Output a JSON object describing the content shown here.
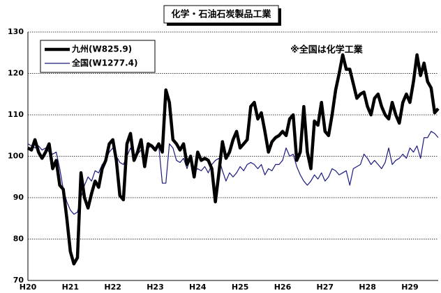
{
  "chart_data": {
    "type": "line",
    "title": "化学・石油石炭製品工業",
    "annotation": "※全国は化学工業",
    "categories": [
      "H20",
      null,
      null,
      null,
      null,
      null,
      null,
      null,
      null,
      null,
      null,
      null,
      "H21",
      null,
      null,
      null,
      null,
      null,
      null,
      null,
      null,
      null,
      null,
      null,
      "H22",
      null,
      null,
      null,
      null,
      null,
      null,
      null,
      null,
      null,
      null,
      null,
      "H23",
      null,
      null,
      null,
      null,
      null,
      null,
      null,
      null,
      null,
      null,
      null,
      "H24",
      null,
      null,
      null,
      null,
      null,
      null,
      null,
      null,
      null,
      null,
      null,
      "H25",
      null,
      null,
      null,
      null,
      null,
      null,
      null,
      null,
      null,
      null,
      null,
      "H26",
      null,
      null,
      null,
      null,
      null,
      null,
      null,
      null,
      null,
      null,
      null,
      "H27",
      null,
      null,
      null,
      null,
      null,
      null,
      null,
      null,
      null,
      null,
      null,
      "H28",
      null,
      null,
      null,
      null,
      null,
      null,
      null,
      null,
      null,
      null,
      null,
      "H29",
      null,
      null,
      null,
      null,
      null,
      null,
      null,
      null
    ],
    "series": [
      {
        "name": "九州(W825.9)",
        "color": "#000000",
        "width": 4.5,
        "values": [
          102,
          101.5,
          104,
          101,
          99.5,
          101,
          103,
          97,
          99,
          93,
          92,
          85,
          77,
          74,
          75.5,
          96,
          90,
          87.5,
          91,
          94,
          92.5,
          97,
          99,
          103,
          104,
          99,
          90.5,
          89.5,
          103,
          105.5,
          99,
          101,
          104,
          97.5,
          103,
          102.5,
          101.5,
          103,
          101,
          116,
          113,
          104,
          103,
          101.5,
          103,
          98,
          100,
          95,
          101,
          99,
          99.5,
          99,
          97,
          89,
          96,
          103.5,
          99.5,
          101,
          104,
          106,
          102,
          103,
          104,
          112,
          113,
          109,
          110.5,
          106,
          101,
          103.5,
          104.5,
          105,
          106,
          105,
          109,
          110,
          99,
          101,
          112,
          101,
          97,
          108.5,
          107.5,
          113,
          106,
          105,
          110,
          116,
          120,
          124.5,
          121,
          121,
          117.5,
          114,
          115,
          115.5,
          112,
          110,
          114,
          115,
          112,
          110,
          109,
          113,
          110,
          108,
          113,
          115,
          113,
          118,
          124.5,
          119.5,
          122.5,
          118,
          116.5,
          110.5,
          111.5
        ]
      },
      {
        "name": "全国(W1277.4)",
        "color": "#1a1a80",
        "width": 1.2,
        "values": [
          103,
          102.5,
          102,
          102.5,
          101.5,
          102,
          101,
          100.5,
          101,
          97,
          92,
          89,
          87,
          86,
          86.5,
          90,
          93,
          95,
          94,
          96.5,
          96,
          98,
          99,
          101,
          102,
          100,
          98.5,
          98,
          100,
          102,
          100,
          100.5,
          101.5,
          99,
          102,
          102.5,
          101.5,
          102.5,
          93.5,
          93.5,
          103,
          102,
          99,
          98.5,
          99.5,
          97,
          100,
          96.5,
          97,
          96.5,
          97.5,
          96,
          98,
          99,
          99.5,
          96.5,
          94,
          96,
          95,
          96,
          97.5,
          96.5,
          98,
          98.5,
          98,
          97,
          98,
          95.5,
          97,
          96.5,
          98,
          98,
          99,
          102,
          100,
          100.5,
          97.5,
          95.5,
          94,
          93,
          94,
          95.5,
          94.5,
          96,
          94,
          95,
          97,
          96.5,
          95.5,
          96,
          96.5,
          93,
          97,
          97.5,
          98,
          100.5,
          99.5,
          98,
          99,
          98,
          97,
          98.5,
          102,
          98,
          99,
          99.5,
          100.5,
          99.5,
          102,
          101,
          102.5,
          99.5,
          104.5,
          104.5,
          106,
          105.5,
          104.5
        ]
      }
    ],
    "ylim": [
      70,
      130
    ],
    "yticks": [
      70,
      80,
      90,
      100,
      110,
      120,
      130
    ],
    "grid": true,
    "legend": "upper left"
  }
}
